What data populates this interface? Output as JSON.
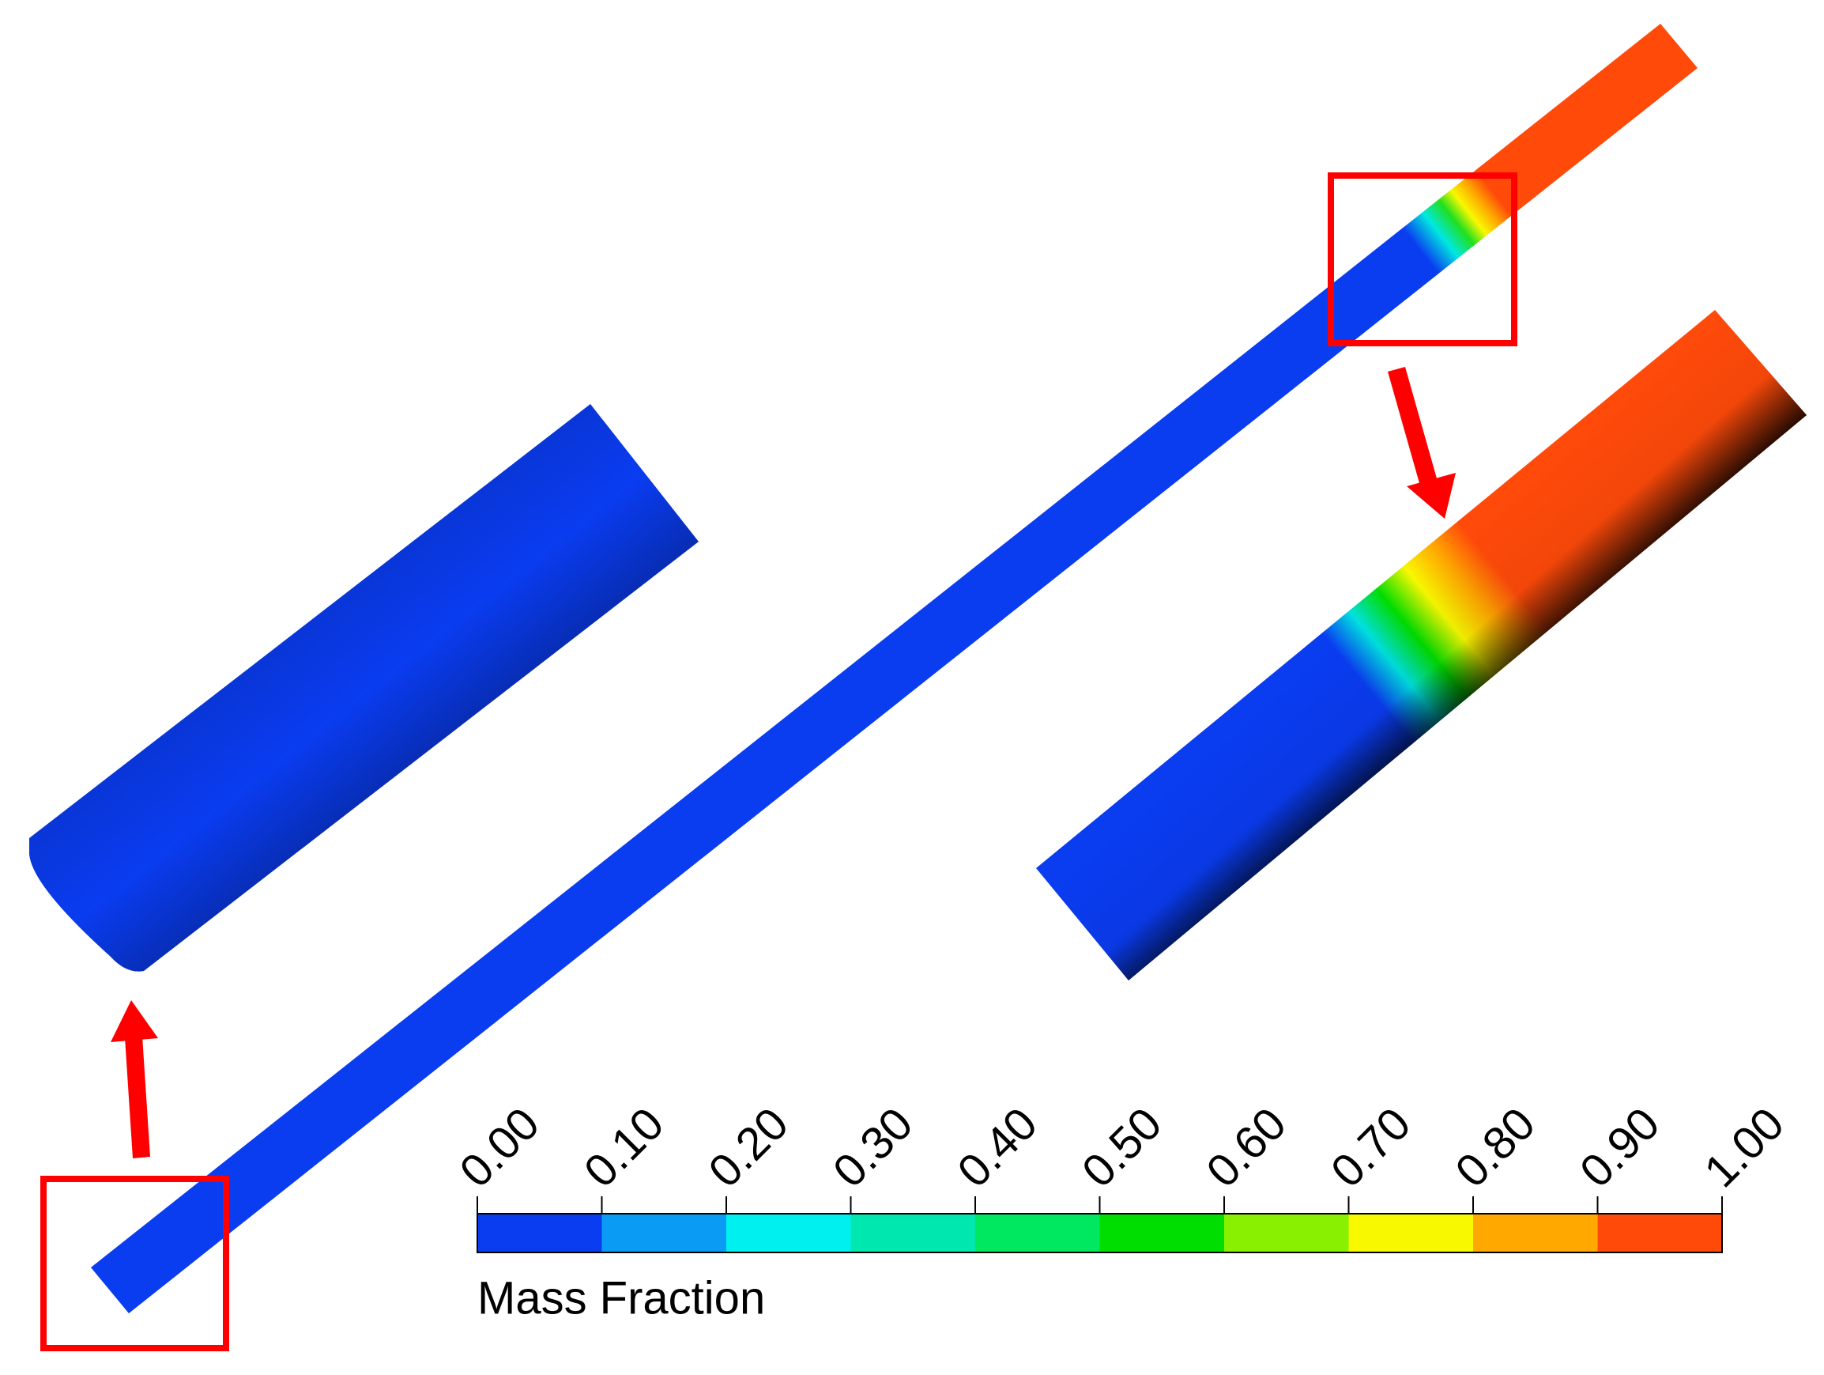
{
  "colorbar": {
    "title": "Mass Fraction",
    "ticks": [
      {
        "value": 0.0,
        "label": "0.00"
      },
      {
        "value": 0.1,
        "label": "0.10"
      },
      {
        "value": 0.2,
        "label": "0.20"
      },
      {
        "value": 0.3,
        "label": "0.30"
      },
      {
        "value": 0.4,
        "label": "0.40"
      },
      {
        "value": 0.5,
        "label": "0.50"
      },
      {
        "value": 0.6,
        "label": "0.60"
      },
      {
        "value": 0.7,
        "label": "0.70"
      },
      {
        "value": 0.8,
        "label": "0.80"
      },
      {
        "value": 0.9,
        "label": "0.90"
      },
      {
        "value": 1.0,
        "label": "1.00"
      }
    ],
    "colors": [
      "#0a3cf0",
      "#0a9cf5",
      "#00f0f0",
      "#00e8b0",
      "#00e860",
      "#00dd00",
      "#88f000",
      "#f8f800",
      "#ffa800",
      "#ff4a0a"
    ]
  }
}
